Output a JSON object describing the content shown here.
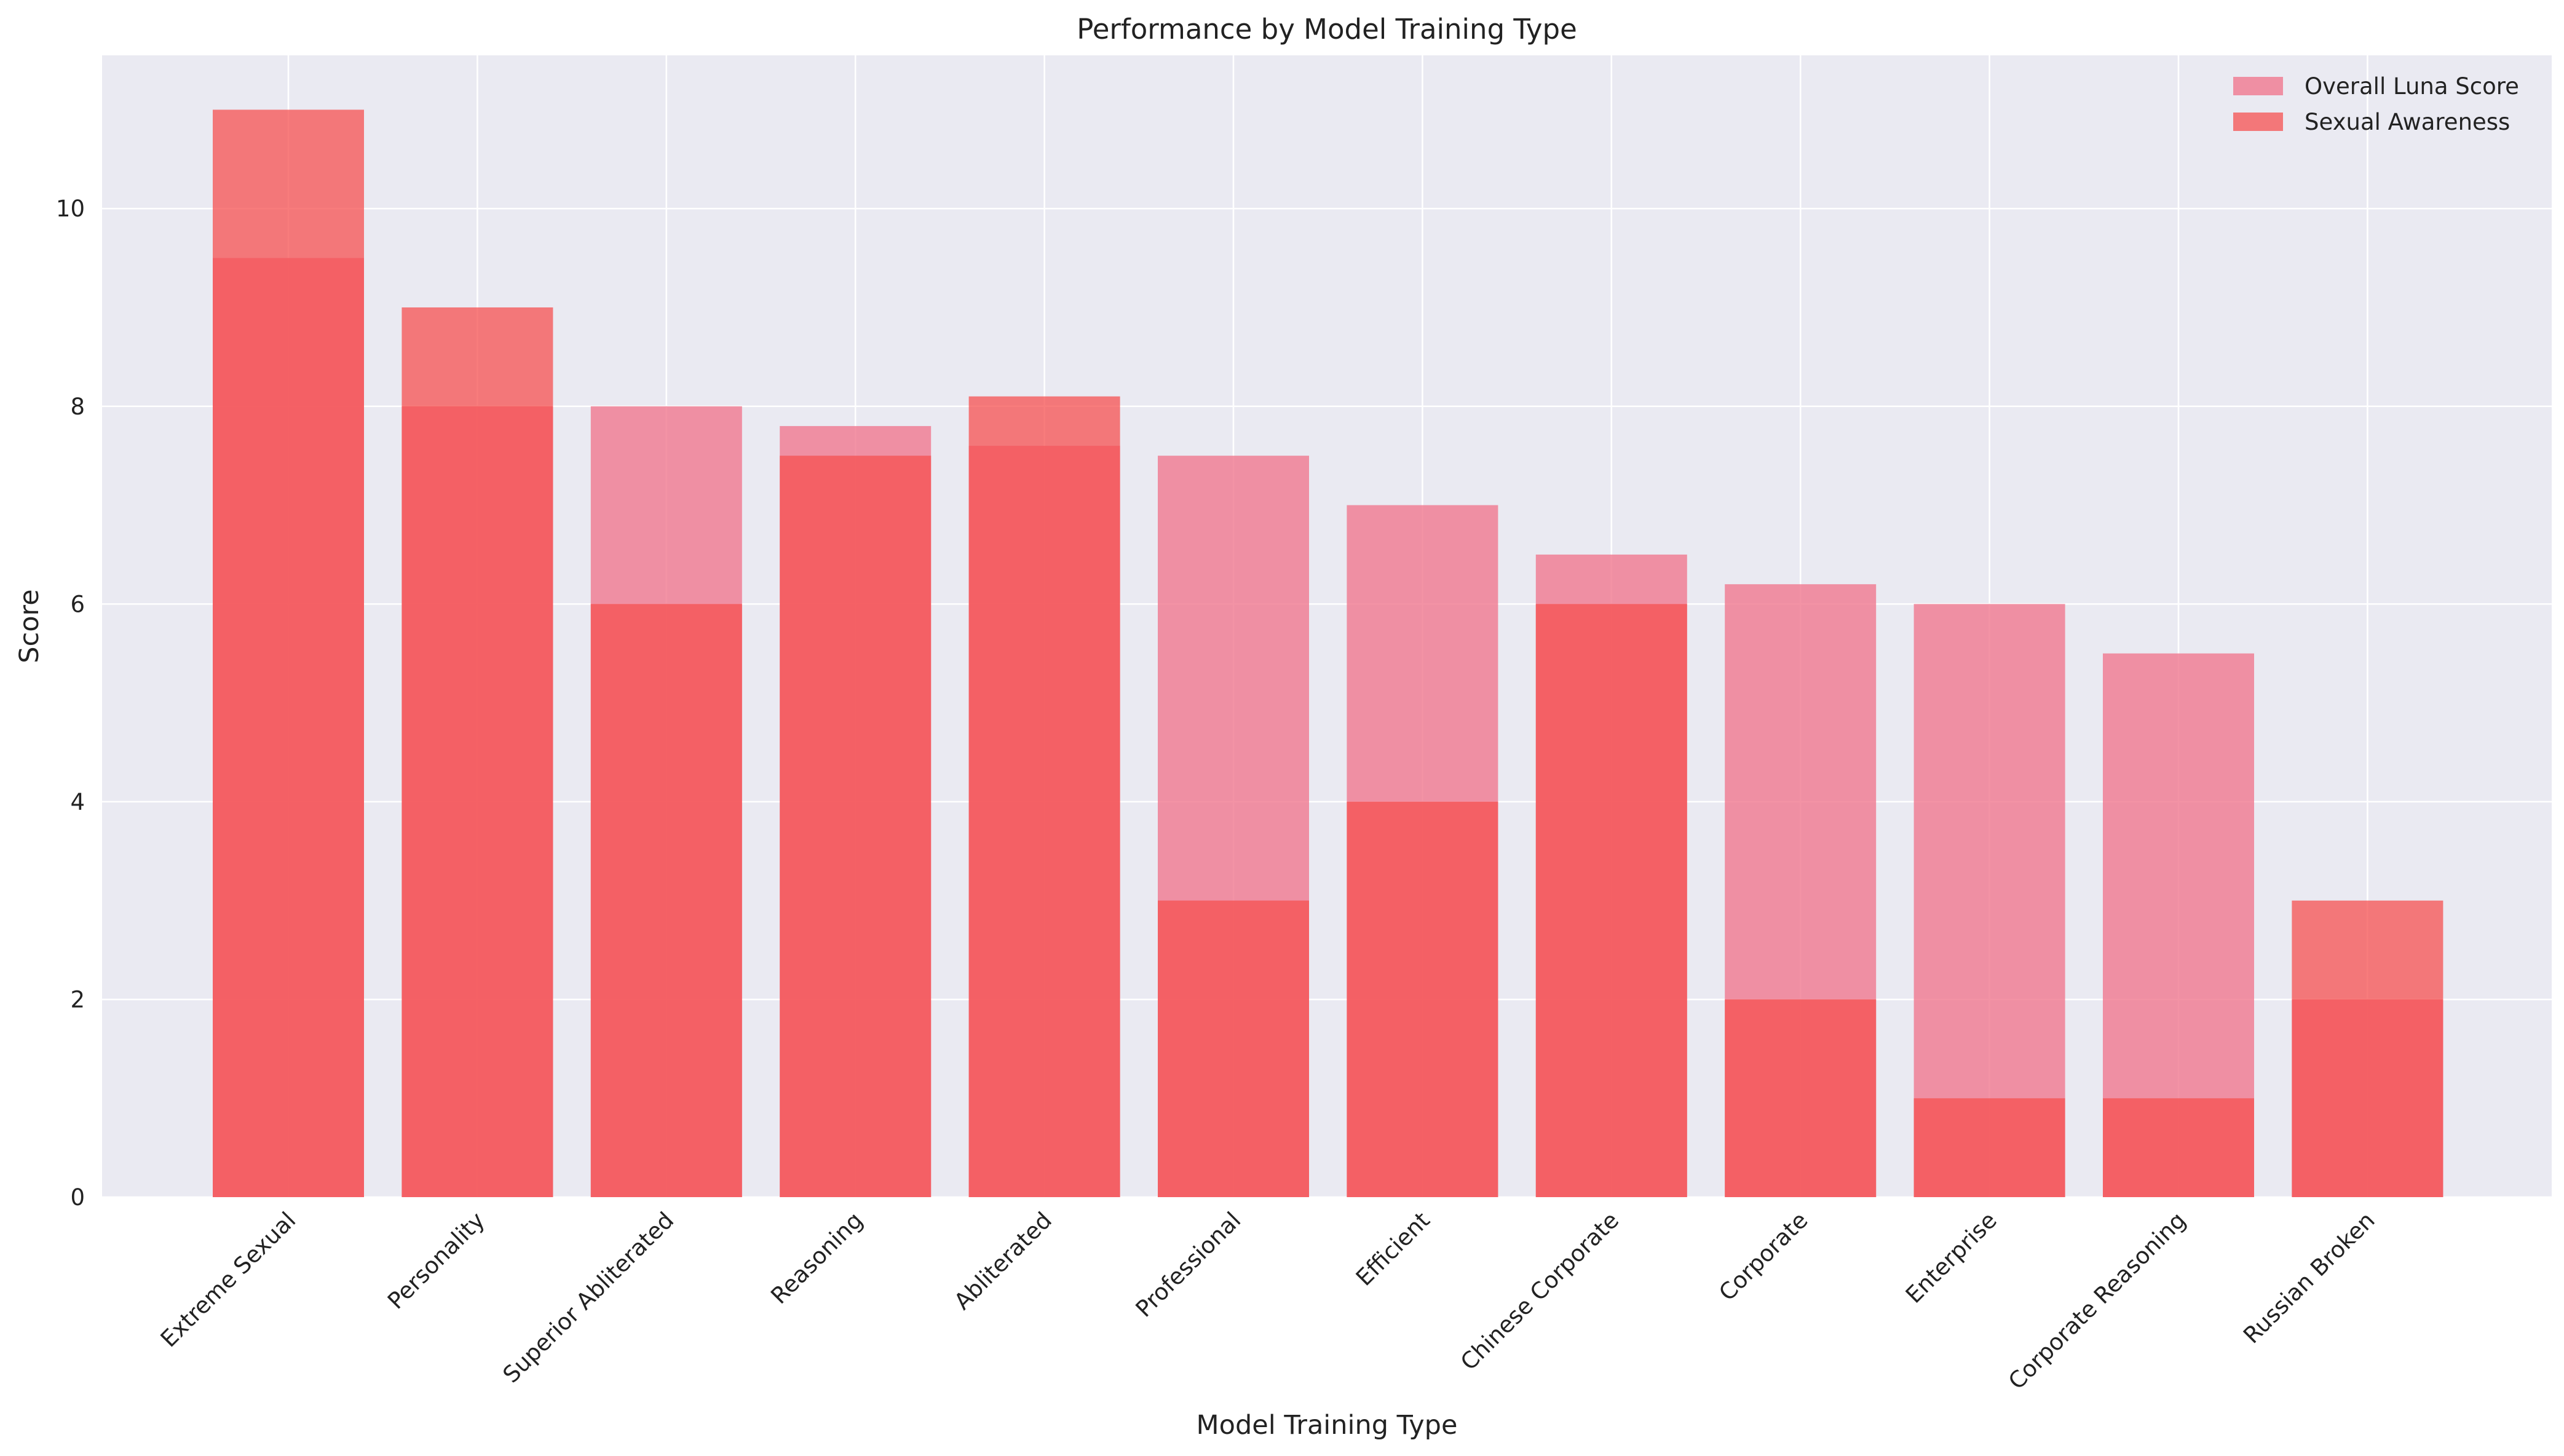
{
  "chart_data": {
    "type": "bar",
    "title": "Performance by Model Training Type",
    "xlabel": "Model Training Type",
    "ylabel": "Score",
    "ylim": [
      0,
      11.55
    ],
    "yticks": [
      0,
      2,
      4,
      6,
      8,
      10
    ],
    "grid": true,
    "legend_position": "top-right",
    "categories": [
      "Extreme Sexual",
      "Personality",
      "Superior Abliterated",
      "Reasoning",
      "Abliterated",
      "Professional",
      "Efficient",
      "Chinese Corporate",
      "Corporate",
      "Enterprise",
      "Corporate Reasoning",
      "Russian Broken"
    ],
    "series": [
      {
        "name": "Overall Luna Score",
        "color": "#f0788e",
        "opacity": 0.8,
        "values": [
          9.5,
          8.0,
          8.0,
          7.8,
          7.6,
          7.5,
          7.0,
          6.5,
          6.2,
          6.0,
          5.5,
          2.0
        ]
      },
      {
        "name": "Sexual Awareness",
        "color": "#f55050",
        "opacity": 0.75,
        "values": [
          11.0,
          9.0,
          6.0,
          7.5,
          8.1,
          3.0,
          4.0,
          6.0,
          2.0,
          1.0,
          1.0,
          3.0
        ]
      }
    ]
  }
}
